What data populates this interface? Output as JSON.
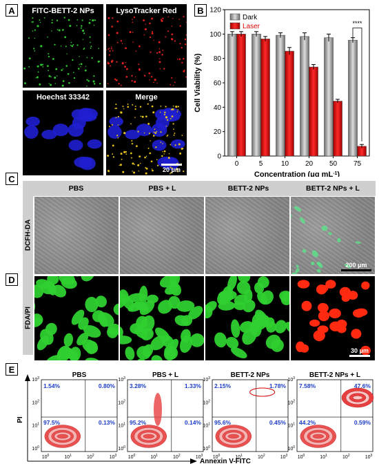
{
  "panels": {
    "A": "A",
    "B": "B",
    "C": "C",
    "D": "D",
    "E": "E"
  },
  "panelA": {
    "tiles": [
      {
        "label": "FITC-BETT-2 NPs",
        "kind": "green"
      },
      {
        "label": "LysoTracker Red",
        "kind": "red"
      },
      {
        "label": "Hoechst 33342",
        "kind": "blue"
      },
      {
        "label": "Merge",
        "kind": "merge"
      }
    ],
    "scale": "20 μm"
  },
  "chart_data": {
    "type": "bar",
    "categories": [
      "0",
      "5",
      "10",
      "20",
      "50",
      "75"
    ],
    "series": [
      {
        "name": "Dark",
        "values": [
          100,
          100,
          99,
          98,
          97,
          95
        ],
        "errors": [
          2,
          2,
          2,
          3,
          3,
          2
        ],
        "color": "#8c8c8c"
      },
      {
        "name": "Laser",
        "values": [
          100,
          96,
          86,
          73,
          45,
          8
        ],
        "errors": [
          2,
          2,
          3,
          2,
          1.5,
          1.5
        ],
        "color": "#e00000"
      }
    ],
    "xlabel": "Concentration (μg mL",
    "xlabel_sup": "-1",
    "xlabel_end": ")",
    "ylabel": "Cell Viability (%)",
    "ylim": [
      0,
      120
    ],
    "yticks": [
      0,
      20,
      40,
      60,
      80,
      100,
      120
    ],
    "annotation": "****",
    "legend_position": "top-left"
  },
  "panelC": {
    "headers": [
      "PBS",
      "PBS + L",
      "BETT-2 NPs",
      "BETT-2 NPs + L"
    ],
    "row_label": "DCFH-DA",
    "scale": "200 μm"
  },
  "panelD": {
    "row_label": "FDA/PI",
    "scale": "30 μm"
  },
  "panelE": {
    "titles": [
      "PBS",
      "PBS + L",
      "BETT-2 NPs",
      "BETT-2 NPs + L"
    ],
    "quadrants": [
      {
        "ul": "1.54%",
        "ur": "0.80%",
        "ll": "97.5%",
        "lr": "0.13%"
      },
      {
        "ul": "3.28%",
        "ur": "1.33%",
        "ll": "95.2%",
        "lr": "0.14%"
      },
      {
        "ul": "2.15%",
        "ur": "1.78%",
        "ll": "95.6%",
        "lr": "0.45%"
      },
      {
        "ul": "7.58%",
        "ur": "47.6%",
        "ll": "44.2%",
        "lr": "0.59%"
      }
    ],
    "xlabel": "Annexin V-FITC",
    "ylabel": "PI",
    "ticks_y": [
      "10",
      "10",
      "10",
      "10"
    ],
    "tick_exps": [
      "0",
      "1",
      "2",
      "3"
    ]
  }
}
